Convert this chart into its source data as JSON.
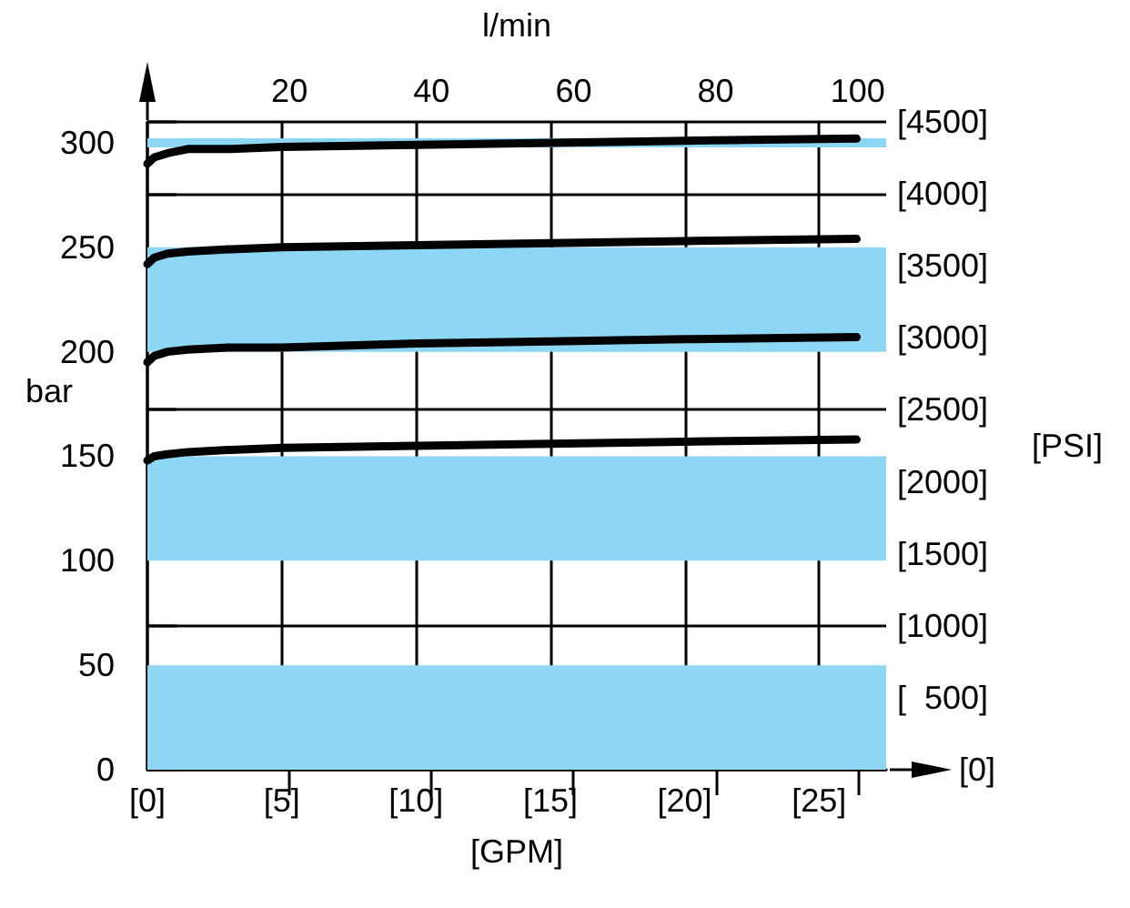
{
  "chart_data": {
    "type": "line",
    "xlabel": "[GPM]",
    "x2label": "l/min",
    "ylabel": "bar",
    "y2label": "[PSI]",
    "x": [
      0,
      0.25,
      0.75,
      1.5,
      3,
      5,
      10,
      15,
      20,
      26.4
    ],
    "xlim": [
      0,
      27.5
    ],
    "xticks": [
      {
        "value": 0,
        "label": "[0]"
      },
      {
        "value": 5,
        "label": "[5]"
      },
      {
        "value": 10,
        "label": "[10]"
      },
      {
        "value": 15,
        "label": "[15]"
      },
      {
        "value": 20,
        "label": "[20]"
      },
      {
        "value": 25,
        "label": "[25]"
      }
    ],
    "x2lim": [
      0,
      104
    ],
    "x2ticks": [
      20,
      40,
      60,
      80,
      100
    ],
    "ylim": [
      0,
      310
    ],
    "yticks": [
      0,
      50,
      100,
      150,
      200,
      250,
      300
    ],
    "y2lim": [
      0,
      4500
    ],
    "y2ticks": [
      {
        "value": 0,
        "label": "[0]"
      },
      {
        "value": 500,
        "label": "[  500]"
      },
      {
        "value": 1000,
        "label": "[1000]"
      },
      {
        "value": 1500,
        "label": "[1500]"
      },
      {
        "value": 2000,
        "label": "[2000]"
      },
      {
        "value": 2500,
        "label": "[2500]"
      },
      {
        "value": 3000,
        "label": "[3000]"
      },
      {
        "value": 3500,
        "label": "[3500]"
      },
      {
        "value": 4000,
        "label": "[4000]"
      },
      {
        "value": 4500,
        "label": "[4500]"
      }
    ],
    "series": [
      {
        "color": "#000000",
        "values": [
          290,
          293,
          295,
          297,
          297,
          298,
          299,
          300,
          301,
          302
        ]
      },
      {
        "color": "#000000",
        "values": [
          242,
          245,
          247,
          248,
          249,
          250,
          251,
          252,
          253,
          254
        ]
      },
      {
        "color": "#000000",
        "values": [
          195,
          198,
          200,
          201,
          202,
          202,
          204,
          205,
          206,
          207
        ]
      },
      {
        "color": "#000000",
        "values": [
          148,
          150,
          151,
          152,
          153,
          154,
          155,
          156,
          157,
          158
        ]
      }
    ],
    "bands": [
      {
        "axis": "y",
        "from": 0,
        "to": 50,
        "color": "#8dd6f4"
      },
      {
        "axis": "y",
        "from": 100,
        "to": 150,
        "color": "#8dd6f4"
      },
      {
        "axis": "y",
        "from": 200,
        "to": 250,
        "color": "#8dd6f4"
      }
    ],
    "ref_lines": [
      {
        "axis": "y",
        "value": 300,
        "color": "#8dd6f4"
      }
    ],
    "grid": true,
    "marker": "none",
    "line_style": "solid"
  }
}
